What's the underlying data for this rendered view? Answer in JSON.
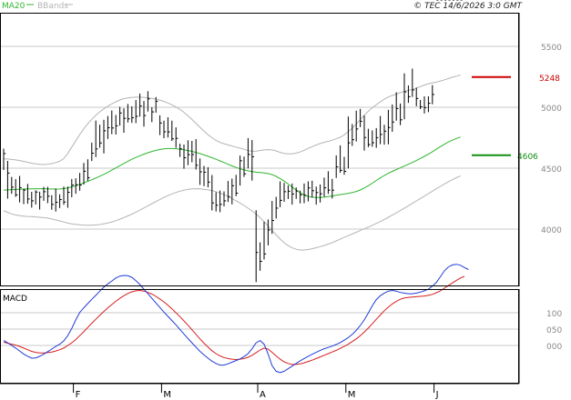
{
  "legend": {
    "ma20_label": "MA20",
    "bbands_label": "BBands"
  },
  "copyright": "© TEC 14/6/2026 3:0 GMT",
  "colors": {
    "ma20": "#2db52d",
    "bbands": "#b4b4b4",
    "bars": "#000000",
    "macd": "#1f3bd6",
    "signal": "#d61f1f",
    "resistance": "#cc0000",
    "support": "#109010",
    "grid": "#c8c8c8"
  },
  "price_panel": {
    "y_ticks": [
      "5500",
      "5000",
      "4500",
      "4000"
    ],
    "y_tick_values": [
      5500,
      5000,
      4500,
      4000
    ]
  },
  "macd_panel": {
    "title": "MACD",
    "y_ticks": [
      "100",
      "050",
      "000"
    ],
    "y_tick_values": [
      100,
      50,
      0
    ]
  },
  "levels": {
    "resistance": {
      "label": "5248",
      "value": 5248
    },
    "support": {
      "label": "4606",
      "value": 4606
    }
  },
  "x_labels": [
    {
      "label": "F",
      "index": 19
    },
    {
      "label": "M",
      "index": 41
    },
    {
      "label": "A",
      "index": 65
    },
    {
      "label": "M",
      "index": 87
    },
    {
      "label": "J",
      "index": 109
    }
  ],
  "chart_data": {
    "type": "line",
    "title": "",
    "y_range": [
      3940,
      5620
    ],
    "ohlc": [
      4660,
      4485,
      4620,
      4560,
      4250,
      4460,
      4428,
      4290,
      4344,
      4410,
      4265,
      4281,
      4436,
      4219,
      4340,
      4331,
      4205,
      4320,
      4371,
      4208,
      4247,
      4306,
      4176,
      4232,
      4319,
      4202,
      4304,
      4307,
      4161,
      4263,
      4346,
      4232,
      4307,
      4347,
      4213,
      4270,
      4278,
      4159,
      4203,
      4333,
      4144,
      4220,
      4285,
      4173,
      4242,
      4349,
      4200,
      4222,
      4349,
      4175,
      4302,
      4411,
      4261,
      4361,
      4417,
      4290,
      4364,
      4461,
      4315,
      4362,
      4543,
      4366,
      4475,
      4573,
      4396,
      4421,
      4710,
      4559,
      4623,
      4891,
      4591,
      4658,
      4857,
      4668,
      4707,
      4897,
      4621,
      4807,
      4928,
      4740,
      4832,
      4974,
      4779,
      4830,
      4937,
      4776,
      4848,
      5004,
      4849,
      4953,
      4992,
      4791,
      4909,
      5027,
      4875,
      4905,
      5008,
      4872,
      4914,
      5059,
      4870,
      4926,
      5113,
      4923,
      5010,
      5051,
      4841,
      4932,
      5132,
      4965,
      5069,
      5000,
      4878,
      4962,
      5084,
      4955,
      5049,
      4934,
      4772,
      4871,
      4890,
      4746,
      4799,
      4918,
      4752,
      4798,
      4890,
      4724,
      4741,
      4835,
      4667,
      4745,
      4701,
      4592,
      4659,
      4694,
      4495,
      4586,
      4729,
      4525,
      4611,
      4724,
      4549,
      4612,
      4739,
      4489,
      4524,
      4580,
      4363,
      4470,
      4519,
      4353,
      4467,
      4508,
      4343,
      4386,
      4444,
      4153,
      4215,
      4302,
      4145,
      4196,
      4317,
      4139,
      4203,
      4310,
      4187,
      4232,
      4395,
      4222,
      4266,
      4415,
      4203,
      4356,
      4445,
      4270,
      4295,
      4604,
      4357,
      4561,
      4595,
      4428,
      4453,
      4747,
      4498,
      4613,
      4731,
      4398,
      4594,
      4155,
      3565,
      3808,
      3891,
      3658,
      3735,
      4062,
      3750,
      3796,
      4079,
      3866,
      3993,
      4231,
      3961,
      4071,
      4265,
      4087,
      4172,
      4392,
      4180,
      4236,
      4380,
      4225,
      4307,
      4358,
      4247,
      4311,
      4374,
      4201,
      4288,
      4342,
      4248,
      4313,
      4316,
      4211,
      4282,
      4374,
      4213,
      4278,
      4392,
      4227,
      4338,
      4397,
      4259,
      4315,
      4349,
      4201,
      4300,
      4366,
      4218,
      4290,
      4423,
      4266,
      4339,
      4475,
      4289,
      4320,
      4412,
      4251,
      4319,
      4605,
      4420,
      4511,
      4687,
      4462,
      4482,
      4593,
      4446,
      4474,
      4924,
      4498,
      4708,
      4863,
      4683,
      4734,
      4972,
      4719,
      4822,
      4987,
      4837,
      4885,
      4933,
      4645,
      4752,
      4823,
      4673,
      4694,
      4810,
      4676,
      4709,
      4829,
      4667,
      4751,
      4928,
      4697,
      4777,
      4856,
      4693,
      4804,
      4979,
      4696,
      4834,
      5023,
      4799,
      4879,
      5123,
      4890,
      4989,
      5031,
      4853,
      4897,
      5279,
      4901,
      5126,
      5179,
      5036,
      5087,
      5317,
      5085,
      5142,
      5161,
      5008,
      5072,
      5060,
      4985,
      5004,
      5090,
      4949,
      4997,
      5090,
      4960,
      5033,
      5182,
      5025,
      5105
    ],
    "ohlc_layout": "high,low,close triplets per trading day",
    "ma20": [
      4320,
      4322,
      4324,
      4325,
      4327,
      4328,
      4330,
      4330,
      4331,
      4331,
      4331,
      4330,
      4329,
      4328,
      4329,
      4332,
      4338,
      4346,
      4356,
      4367,
      4379,
      4392,
      4405,
      4419,
      4434,
      4449,
      4466,
      4484,
      4502,
      4521,
      4539,
      4557,
      4573,
      4588,
      4602,
      4615,
      4627,
      4637,
      4646,
      4653,
      4658,
      4661,
      4661,
      4660,
      4656,
      4651,
      4645,
      4638,
      4629,
      4620,
      4609,
      4598,
      4586,
      4573,
      4560,
      4546,
      4532,
      4519,
      4506,
      4495,
      4486,
      4478,
      4472,
      4467,
      4464,
      4461,
      4456,
      4447,
      4433,
      4415,
      4394,
      4370,
      4345,
      4320,
      4298,
      4280,
      4268,
      4262,
      4259,
      4259,
      4262,
      4267,
      4272,
      4278,
      4283,
      4288,
      4293,
      4300,
      4309,
      4321,
      4337,
      4356,
      4377,
      4399,
      4420,
      4440,
      4458,
      4474,
      4489,
      4503,
      4517,
      4532,
      4547,
      4563,
      4580,
      4597,
      4615,
      4635,
      4656,
      4677,
      4696,
      4715,
      4730,
      4744,
      4756
    ],
    "bb_upper": [
      4577,
      4575,
      4572,
      4568,
      4563,
      4556,
      4548,
      4541,
      4535,
      4531,
      4530,
      4533,
      4537,
      4546,
      4557,
      4579,
      4620,
      4673,
      4725,
      4776,
      4823,
      4865,
      4901,
      4934,
      4963,
      4987,
      5009,
      5028,
      5045,
      5060,
      5071,
      5077,
      5081,
      5083,
      5083,
      5081,
      5078,
      5073,
      5067,
      5059,
      5048,
      5035,
      5020,
      5003,
      4983,
      4959,
      4930,
      4900,
      4869,
      4836,
      4805,
      4775,
      4750,
      4728,
      4713,
      4701,
      4691,
      4682,
      4673,
      4664,
      4655,
      4645,
      4639,
      4640,
      4645,
      4650,
      4652,
      4650,
      4642,
      4630,
      4622,
      4617,
      4618,
      4624,
      4633,
      4647,
      4663,
      4677,
      4690,
      4702,
      4713,
      4720,
      4730,
      4741,
      4754,
      4774,
      4800,
      4828,
      4862,
      4899,
      4934,
      4967,
      4996,
      5021,
      5045,
      5066,
      5084,
      5097,
      5108,
      5120,
      5131,
      5138,
      5146,
      5157,
      5170,
      5183,
      5193,
      5200,
      5207,
      5216,
      5225,
      5236,
      5246,
      5255,
      5265
    ],
    "bb_lower": [
      4150,
      4138,
      4125,
      4116,
      4110,
      4106,
      4104,
      4102,
      4100,
      4097,
      4094,
      4090,
      4083,
      4075,
      4067,
      4058,
      4049,
      4043,
      4038,
      4035,
      4033,
      4032,
      4032,
      4034,
      4037,
      4043,
      4050,
      4059,
      4069,
      4081,
      4094,
      4108,
      4123,
      4139,
      4156,
      4173,
      4191,
      4209,
      4226,
      4243,
      4260,
      4275,
      4289,
      4301,
      4311,
      4319,
      4326,
      4330,
      4331,
      4330,
      4327,
      4322,
      4316,
      4307,
      4296,
      4283,
      4268,
      4251,
      4233,
      4214,
      4194,
      4172,
      4149,
      4123,
      4094,
      4061,
      4025,
      3988,
      3952,
      3918,
      3888,
      3864,
      3846,
      3834,
      3828,
      3828,
      3832,
      3839,
      3847,
      3856,
      3866,
      3877,
      3889,
      3903,
      3917,
      3932,
      3946,
      3960,
      3974,
      3988,
      4002,
      4016,
      4031,
      4046,
      4062,
      4079,
      4097,
      4115,
      4133,
      4152,
      4171,
      4191,
      4211,
      4231,
      4251,
      4271,
      4291,
      4311,
      4331,
      4351,
      4370,
      4389,
      4406,
      4422,
      4437
    ],
    "macd": [
      15,
      8,
      0,
      -8,
      -17,
      -26,
      -33,
      -39,
      -38,
      -33,
      -27,
      -19,
      -11,
      -3,
      4,
      14,
      30,
      52,
      78,
      101,
      115,
      128,
      141,
      153,
      166,
      178,
      188,
      197,
      206,
      212,
      214,
      213,
      208,
      198,
      186,
      172,
      158,
      144,
      130,
      116,
      102,
      89,
      76,
      63,
      49,
      35,
      21,
      8,
      -5,
      -18,
      -29,
      -39,
      -48,
      -55,
      -60,
      -60,
      -56,
      -51,
      -46,
      -41,
      -34,
      -25,
      -10,
      8,
      15,
      4,
      -26,
      -62,
      -79,
      -83,
      -79,
      -71,
      -63,
      -55,
      -47,
      -40,
      -33,
      -27,
      -21,
      -15,
      -10,
      -6,
      -2,
      3,
      9,
      16,
      24,
      34,
      46,
      61,
      78,
      99,
      121,
      140,
      152,
      160,
      166,
      168,
      166,
      162,
      160,
      158,
      158,
      160,
      163,
      167,
      172,
      181,
      193,
      210,
      228,
      240,
      246,
      248,
      245,
      238,
      232
    ],
    "macd_signal": [
      10,
      7,
      4,
      1,
      -3,
      -8,
      -13,
      -18,
      -21,
      -23,
      -23,
      -22,
      -20,
      -17,
      -13,
      -8,
      0,
      8,
      18,
      30,
      42,
      55,
      68,
      80,
      92,
      104,
      115,
      125,
      135,
      144,
      152,
      159,
      164,
      167,
      168,
      166,
      162,
      157,
      150,
      142,
      133,
      123,
      112,
      100,
      88,
      75,
      62,
      48,
      34,
      20,
      7,
      -5,
      -16,
      -25,
      -32,
      -37,
      -40,
      -42,
      -43,
      -42,
      -40,
      -36,
      -30,
      -22,
      -14,
      -8,
      -11,
      -21,
      -32,
      -42,
      -50,
      -55,
      -58,
      -58,
      -56,
      -53,
      -49,
      -45,
      -40,
      -35,
      -30,
      -25,
      -20,
      -15,
      -9,
      -3,
      4,
      12,
      20,
      30,
      41,
      53,
      66,
      80,
      93,
      106,
      117,
      127,
      135,
      141,
      145,
      147,
      148,
      149,
      150,
      151,
      153,
      156,
      161,
      167,
      175,
      183,
      191,
      199,
      206,
      211
    ]
  }
}
